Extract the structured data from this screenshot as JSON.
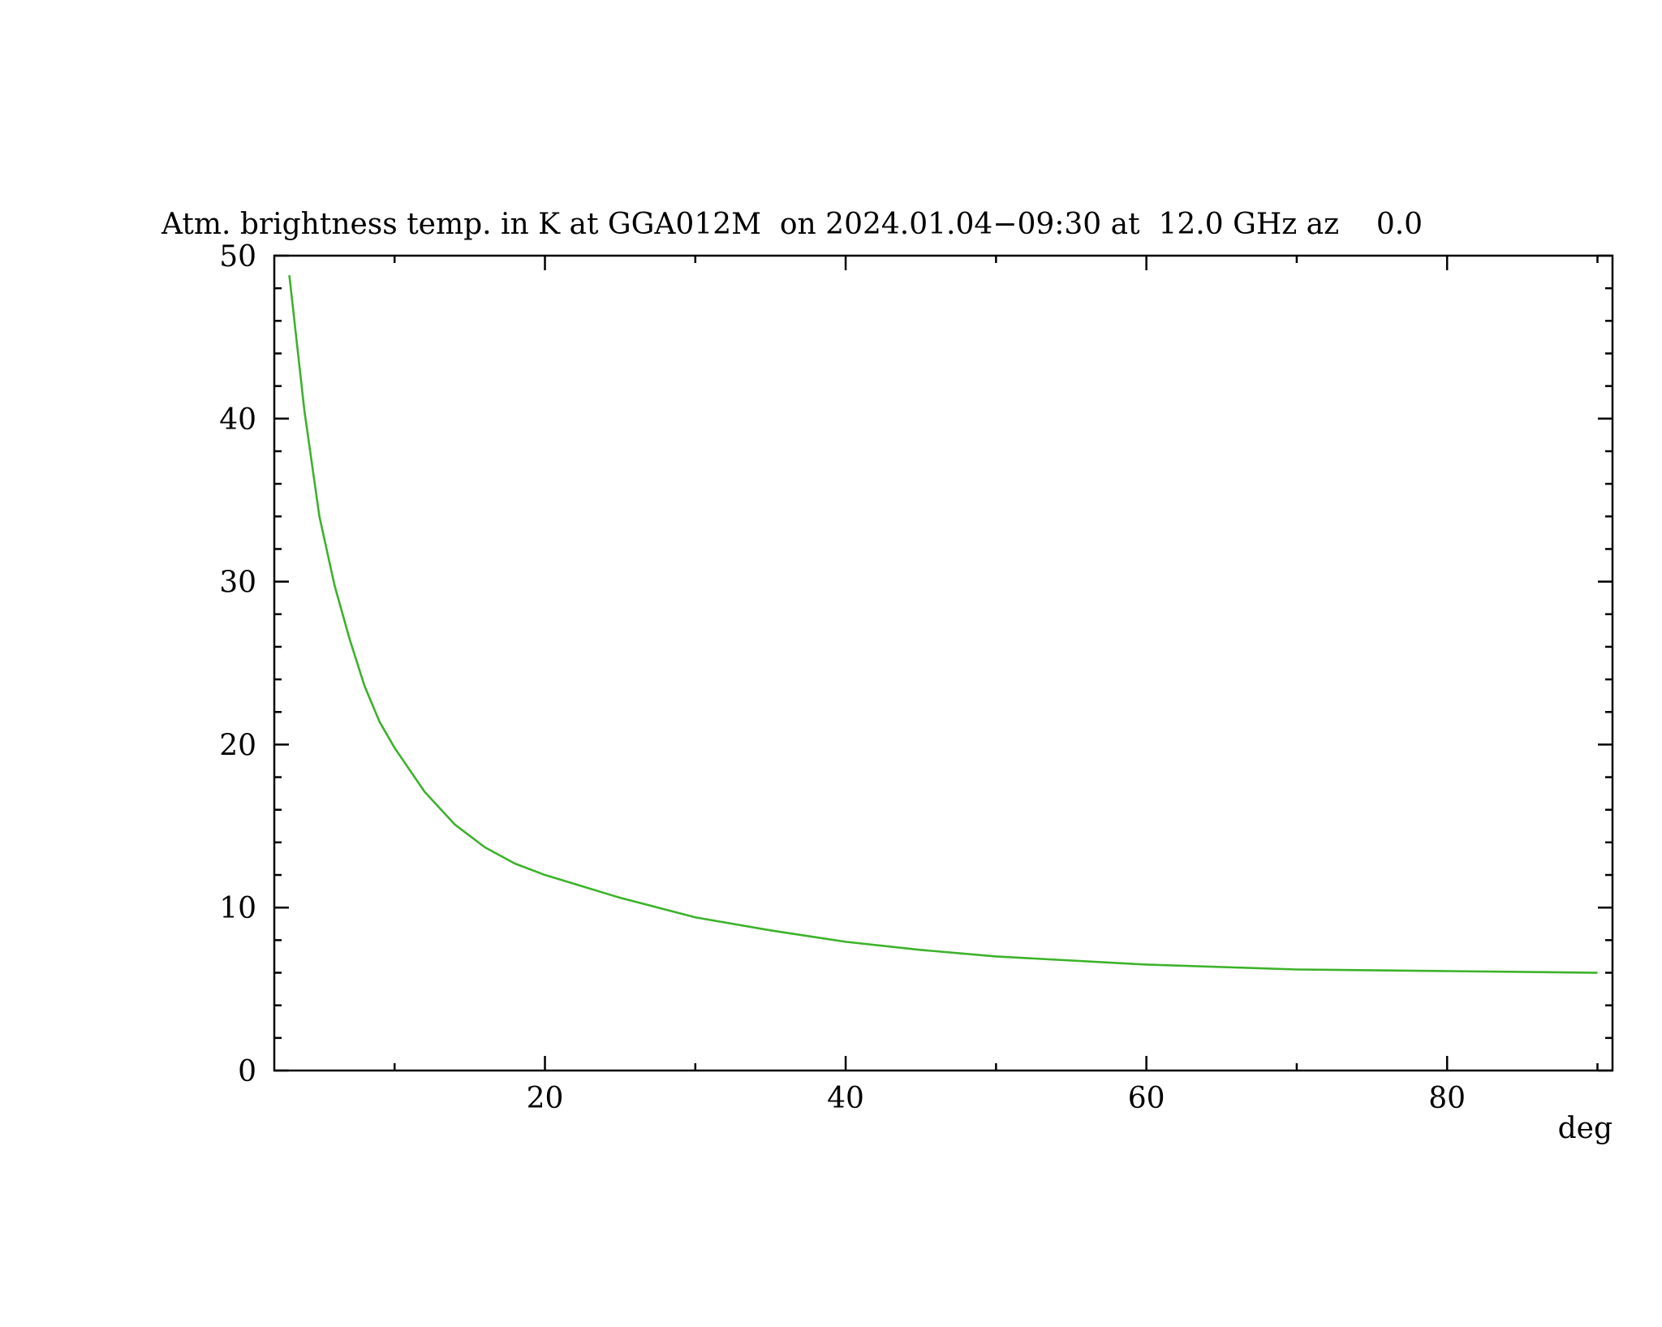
{
  "chart_data": {
    "type": "line",
    "title": "Atm. brightness temp. in K at GGA012M  on 2024.01.04−09:30 at  12.0 GHz az    0.0",
    "x_label": "deg",
    "x": [
      3,
      4,
      5,
      6,
      7,
      8,
      9,
      10,
      12,
      14,
      16,
      18,
      20,
      25,
      30,
      35,
      40,
      45,
      50,
      60,
      70,
      80,
      90
    ],
    "series": [
      {
        "color": "#3cb22a",
        "values": [
          48.8,
          40.5,
          34.0,
          29.8,
          26.5,
          23.6,
          21.4,
          19.8,
          17.1,
          15.1,
          13.7,
          12.7,
          12.0,
          10.6,
          9.4,
          8.6,
          7.9,
          7.4,
          7.0,
          6.5,
          6.2,
          6.1,
          6.0
        ]
      }
    ],
    "xlim": [
      2,
      91
    ],
    "ylim": [
      0,
      50
    ],
    "xticks": [
      20,
      40,
      60,
      80
    ],
    "yticks": [
      0,
      10,
      20,
      30,
      40,
      50
    ]
  }
}
